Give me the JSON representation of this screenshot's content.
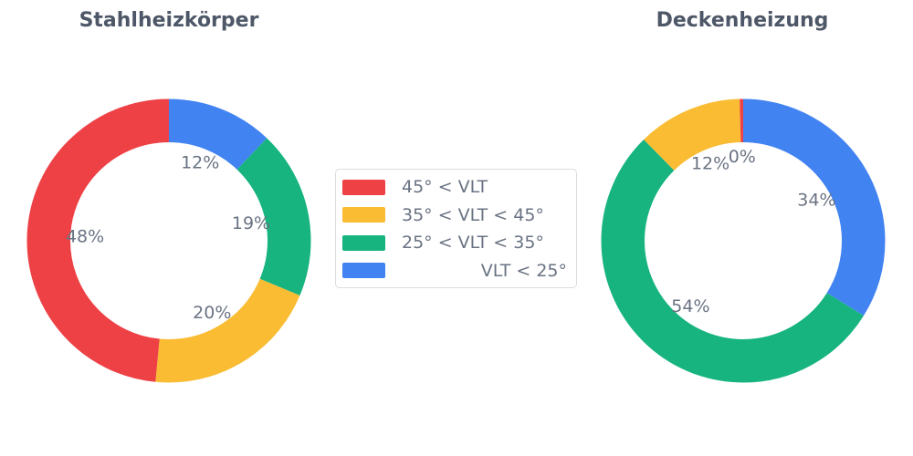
{
  "figure": {
    "background": "#ffffff",
    "title_color": "#4E5767",
    "label_color": "#6A7383",
    "legend_border_color": "#D9DCE1"
  },
  "legend": {
    "position": "center-between-charts",
    "items": [
      {
        "key": "vlt-gt-45",
        "label": "45° < VLT",
        "color": "#EE4146",
        "text_align": "left"
      },
      {
        "key": "vlt-35-45",
        "label": "35° < VLT < 45°",
        "color": "#F9BC33",
        "text_align": "left"
      },
      {
        "key": "vlt-25-35",
        "label": "25° < VLT < 35°",
        "color": "#17B480",
        "text_align": "left"
      },
      {
        "key": "vlt-lt-25",
        "label": "VLT < 25°",
        "color": "#4283F2",
        "text_align": "right"
      }
    ]
  },
  "chart_data": [
    {
      "type": "pie",
      "title": "Stahlheizkörper",
      "hole": 0.7,
      "start_angle": "top",
      "direction": "counterclockwise",
      "labels_position": "inside",
      "slices": [
        {
          "category": "45° < VLT",
          "key": "vlt-gt-45",
          "color_index": 0,
          "value": 48,
          "percent_label": "48%"
        },
        {
          "category": "35° < VLT < 45°",
          "key": "vlt-35-45",
          "color_index": 1,
          "value": 20,
          "percent_label": "20%"
        },
        {
          "category": "25° < VLT < 35°",
          "key": "vlt-25-35",
          "color_index": 2,
          "value": 19,
          "percent_label": "19%"
        },
        {
          "category": "VLT < 25°",
          "key": "vlt-lt-25",
          "color_index": 3,
          "value": 12,
          "percent_label": "12%"
        }
      ]
    },
    {
      "type": "pie",
      "title": "Deckenheizung",
      "hole": 0.7,
      "start_angle": "top",
      "direction": "counterclockwise",
      "labels_position": "inside",
      "slices": [
        {
          "category": "45° < VLT",
          "key": "vlt-gt-45",
          "color_index": 0,
          "value": 0.4,
          "percent_label": "0%"
        },
        {
          "category": "35° < VLT < 45°",
          "key": "vlt-35-45",
          "color_index": 1,
          "value": 12,
          "percent_label": "12%"
        },
        {
          "category": "25° < VLT < 35°",
          "key": "vlt-25-35",
          "color_index": 2,
          "value": 54,
          "percent_label": "54%"
        },
        {
          "category": "VLT < 25°",
          "key": "vlt-lt-25",
          "color_index": 3,
          "value": 34,
          "percent_label": "34%"
        }
      ]
    }
  ]
}
